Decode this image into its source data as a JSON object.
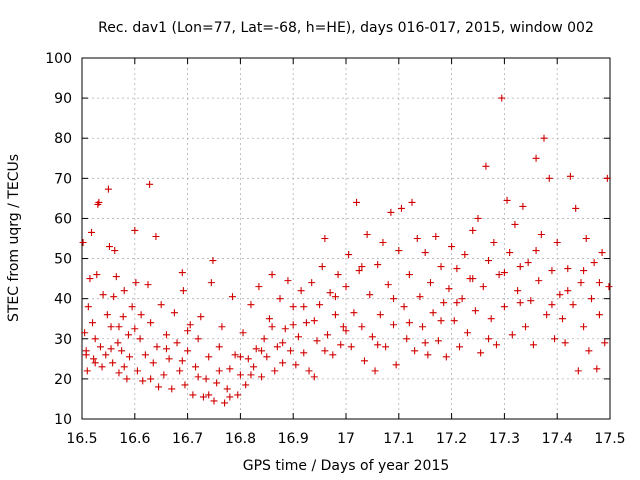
{
  "chart_data": {
    "type": "scatter",
    "title": "Rec. dav1 (Lon=77, Lat=-68, h=HE), days 016-017, 2015, window 002",
    "xlabel": "GPS time / Days of year 2015",
    "ylabel": "STEC from uqrg / TECUs",
    "xlim": [
      16.5,
      17.5
    ],
    "ylim": [
      10,
      100
    ],
    "x_ticks": [
      "16.5",
      "16.6",
      "16.7",
      "16.8",
      "16.9",
      "17",
      "17.1",
      "17.2",
      "17.3",
      "17.4",
      "17.5"
    ],
    "y_ticks": [
      "10",
      "20",
      "30",
      "40",
      "50",
      "60",
      "70",
      "80",
      "90",
      "100"
    ],
    "grid": true,
    "legend": "none",
    "marker": "+",
    "color": "#d00000",
    "series": [
      {
        "points": [
          [
            16.502,
            54.0
          ],
          [
            16.505,
            31.5
          ],
          [
            16.508,
            27.0
          ],
          [
            16.51,
            22.0
          ],
          [
            16.512,
            38.0
          ],
          [
            16.515,
            45.0
          ],
          [
            16.518,
            56.5
          ],
          [
            16.52,
            34.0
          ],
          [
            16.522,
            25.0
          ],
          [
            16.525,
            30.0
          ],
          [
            16.528,
            46.0
          ],
          [
            16.53,
            63.5
          ],
          [
            16.532,
            64.0
          ],
          [
            16.535,
            28.0
          ],
          [
            16.538,
            23.0
          ],
          [
            16.54,
            41.0
          ],
          [
            16.545,
            26.0
          ],
          [
            16.548,
            36.0
          ],
          [
            16.55,
            67.3
          ],
          [
            16.552,
            53.0
          ],
          [
            16.555,
            33.0
          ],
          [
            16.558,
            24.0
          ],
          [
            16.56,
            40.5
          ],
          [
            16.562,
            52.0
          ],
          [
            16.565,
            45.5
          ],
          [
            16.568,
            29.0
          ],
          [
            16.57,
            21.5
          ],
          [
            16.575,
            27.0
          ],
          [
            16.578,
            35.5
          ],
          [
            16.58,
            42.0
          ],
          [
            16.585,
            20.0
          ],
          [
            16.588,
            31.0
          ],
          [
            16.59,
            25.5
          ],
          [
            16.595,
            38.0
          ],
          [
            16.6,
            57.0
          ],
          [
            16.602,
            44.0
          ],
          [
            16.605,
            22.0
          ],
          [
            16.61,
            30.0
          ],
          [
            16.612,
            36.0
          ],
          [
            16.615,
            19.5
          ],
          [
            16.62,
            26.0
          ],
          [
            16.625,
            43.5
          ],
          [
            16.628,
            68.5
          ],
          [
            16.63,
            34.0
          ],
          [
            16.635,
            24.0
          ],
          [
            16.64,
            55.5
          ],
          [
            16.642,
            28.0
          ],
          [
            16.645,
            18.0
          ],
          [
            16.65,
            38.5
          ],
          [
            16.655,
            21.0
          ],
          [
            16.66,
            31.0
          ],
          [
            16.665,
            25.0
          ],
          [
            16.67,
            17.5
          ],
          [
            16.675,
            36.5
          ],
          [
            16.68,
            29.0
          ],
          [
            16.685,
            22.0
          ],
          [
            16.69,
            46.5
          ],
          [
            16.692,
            42.0
          ],
          [
            16.695,
            18.5
          ],
          [
            16.7,
            27.0
          ],
          [
            16.705,
            33.5
          ],
          [
            16.71,
            16.0
          ],
          [
            16.715,
            23.0
          ],
          [
            16.72,
            30.0
          ],
          [
            16.725,
            35.5
          ],
          [
            16.73,
            15.5
          ],
          [
            16.735,
            20.0
          ],
          [
            16.74,
            25.5
          ],
          [
            16.745,
            44.0
          ],
          [
            16.748,
            49.5
          ],
          [
            16.75,
            14.5
          ],
          [
            16.755,
            19.0
          ],
          [
            16.76,
            28.0
          ],
          [
            16.765,
            33.0
          ],
          [
            16.77,
            14.0
          ],
          [
            16.775,
            17.5
          ],
          [
            16.78,
            22.5
          ],
          [
            16.785,
            40.5
          ],
          [
            16.79,
            26.0
          ],
          [
            16.795,
            16.0
          ],
          [
            16.8,
            21.0
          ],
          [
            16.805,
            31.5
          ],
          [
            16.81,
            18.5
          ],
          [
            16.815,
            25.0
          ],
          [
            16.82,
            38.5
          ],
          [
            16.825,
            23.0
          ],
          [
            16.83,
            27.5
          ],
          [
            16.835,
            43.0
          ],
          [
            16.84,
            20.5
          ],
          [
            16.845,
            30.0
          ],
          [
            16.85,
            25.5
          ],
          [
            16.855,
            35.0
          ],
          [
            16.86,
            46.0
          ],
          [
            16.865,
            22.0
          ],
          [
            16.87,
            28.0
          ],
          [
            16.875,
            40.0
          ],
          [
            16.88,
            24.0
          ],
          [
            16.885,
            32.5
          ],
          [
            16.89,
            44.5
          ],
          [
            16.895,
            27.0
          ],
          [
            16.9,
            38.0
          ],
          [
            16.905,
            23.5
          ],
          [
            16.91,
            30.5
          ],
          [
            16.915,
            42.0
          ],
          [
            16.92,
            26.5
          ],
          [
            16.925,
            34.0
          ],
          [
            16.93,
            22.0
          ],
          [
            16.935,
            44.0
          ],
          [
            16.94,
            20.5
          ],
          [
            16.945,
            29.5
          ],
          [
            16.95,
            38.5
          ],
          [
            16.955,
            48.0
          ],
          [
            16.96,
            55.0
          ],
          [
            16.965,
            31.0
          ],
          [
            16.97,
            41.5
          ],
          [
            16.975,
            26.0
          ],
          [
            16.98,
            36.0
          ],
          [
            16.985,
            46.0
          ],
          [
            16.99,
            28.5
          ],
          [
            16.995,
            33.0
          ],
          [
            17.0,
            43.0
          ],
          [
            17.005,
            51.0
          ],
          [
            17.01,
            28.0
          ],
          [
            17.015,
            36.5
          ],
          [
            17.02,
            64.0
          ],
          [
            17.025,
            47.0
          ],
          [
            17.03,
            33.0
          ],
          [
            17.035,
            24.5
          ],
          [
            17.04,
            56.0
          ],
          [
            17.045,
            41.0
          ],
          [
            17.05,
            30.5
          ],
          [
            17.055,
            22.0
          ],
          [
            17.06,
            48.5
          ],
          [
            17.065,
            36.0
          ],
          [
            17.07,
            54.0
          ],
          [
            17.075,
            28.0
          ],
          [
            17.08,
            43.5
          ],
          [
            17.085,
            61.5
          ],
          [
            17.09,
            33.5
          ],
          [
            17.095,
            23.5
          ],
          [
            17.1,
            52.0
          ],
          [
            17.105,
            62.5
          ],
          [
            17.11,
            38.0
          ],
          [
            17.115,
            30.0
          ],
          [
            17.12,
            46.0
          ],
          [
            17.125,
            64.0
          ],
          [
            17.13,
            27.0
          ],
          [
            17.135,
            55.0
          ],
          [
            17.14,
            40.5
          ],
          [
            17.145,
            33.0
          ],
          [
            17.15,
            51.5
          ],
          [
            17.155,
            26.0
          ],
          [
            17.16,
            44.0
          ],
          [
            17.165,
            36.5
          ],
          [
            17.17,
            55.5
          ],
          [
            17.175,
            29.5
          ],
          [
            17.18,
            48.0
          ],
          [
            17.185,
            39.0
          ],
          [
            17.19,
            25.5
          ],
          [
            17.195,
            42.5
          ],
          [
            17.2,
            53.0
          ],
          [
            17.205,
            34.5
          ],
          [
            17.21,
            47.5
          ],
          [
            17.215,
            28.0
          ],
          [
            17.22,
            40.0
          ],
          [
            17.225,
            51.0
          ],
          [
            17.23,
            31.5
          ],
          [
            17.235,
            45.0
          ],
          [
            17.24,
            57.0
          ],
          [
            17.245,
            37.0
          ],
          [
            17.25,
            60.0
          ],
          [
            17.255,
            26.5
          ],
          [
            17.26,
            43.0
          ],
          [
            17.265,
            73.0
          ],
          [
            17.27,
            49.5
          ],
          [
            17.275,
            35.0
          ],
          [
            17.28,
            54.0
          ],
          [
            17.285,
            28.5
          ],
          [
            17.29,
            46.0
          ],
          [
            17.295,
            90.0
          ],
          [
            17.3,
            38.0
          ],
          [
            17.305,
            64.5
          ],
          [
            17.31,
            51.5
          ],
          [
            17.315,
            31.0
          ],
          [
            17.32,
            58.5
          ],
          [
            17.325,
            42.0
          ],
          [
            17.33,
            48.0
          ],
          [
            17.335,
            63.0
          ],
          [
            17.34,
            33.0
          ],
          [
            17.345,
            49.0
          ],
          [
            17.35,
            39.5
          ],
          [
            17.355,
            28.5
          ],
          [
            17.36,
            75.0
          ],
          [
            17.365,
            44.5
          ],
          [
            17.37,
            56.0
          ],
          [
            17.375,
            80.0
          ],
          [
            17.38,
            36.0
          ],
          [
            17.385,
            70.0
          ],
          [
            17.39,
            47.0
          ],
          [
            17.395,
            30.0
          ],
          [
            17.4,
            54.0
          ],
          [
            17.405,
            41.0
          ],
          [
            17.41,
            35.0
          ],
          [
            17.415,
            29.0
          ],
          [
            17.42,
            47.5
          ],
          [
            17.425,
            70.5
          ],
          [
            17.43,
            38.5
          ],
          [
            17.435,
            62.5
          ],
          [
            17.44,
            22.0
          ],
          [
            17.445,
            44.0
          ],
          [
            17.45,
            33.0
          ],
          [
            17.455,
            55.0
          ],
          [
            17.46,
            27.0
          ],
          [
            17.465,
            40.0
          ],
          [
            17.47,
            49.0
          ],
          [
            17.475,
            22.5
          ],
          [
            17.48,
            36.0
          ],
          [
            17.485,
            51.5
          ],
          [
            17.49,
            29.0
          ],
          [
            17.495,
            70.0
          ],
          [
            17.498,
            43.0
          ],
          [
            16.508,
            26.0
          ],
          [
            16.525,
            24.0
          ],
          [
            16.555,
            27.5
          ],
          [
            16.57,
            33.0
          ],
          [
            16.58,
            23.0
          ],
          [
            16.6,
            32.5
          ],
          [
            16.63,
            20.0
          ],
          [
            16.66,
            27.5
          ],
          [
            16.69,
            24.5
          ],
          [
            16.7,
            32.0
          ],
          [
            16.72,
            20.5
          ],
          [
            16.74,
            16.0
          ],
          [
            16.76,
            22.0
          ],
          [
            16.78,
            15.5
          ],
          [
            16.8,
            25.5
          ],
          [
            16.82,
            21.0
          ],
          [
            16.84,
            27.0
          ],
          [
            16.86,
            33.0
          ],
          [
            16.88,
            29.0
          ],
          [
            16.9,
            33.5
          ],
          [
            16.92,
            38.0
          ],
          [
            16.94,
            34.5
          ],
          [
            16.96,
            27.0
          ],
          [
            16.98,
            40.5
          ],
          [
            17.0,
            32.0
          ],
          [
            17.03,
            48.0
          ],
          [
            17.06,
            28.5
          ],
          [
            17.09,
            40.0
          ],
          [
            17.12,
            34.0
          ],
          [
            17.15,
            29.0
          ],
          [
            17.18,
            34.5
          ],
          [
            17.21,
            39.0
          ],
          [
            17.24,
            45.0
          ],
          [
            17.27,
            30.0
          ],
          [
            17.3,
            46.5
          ],
          [
            17.33,
            39.0
          ],
          [
            17.36,
            52.0
          ],
          [
            17.39,
            38.5
          ],
          [
            17.42,
            42.0
          ],
          [
            17.45,
            47.0
          ],
          [
            17.48,
            44.0
          ]
        ]
      }
    ]
  }
}
